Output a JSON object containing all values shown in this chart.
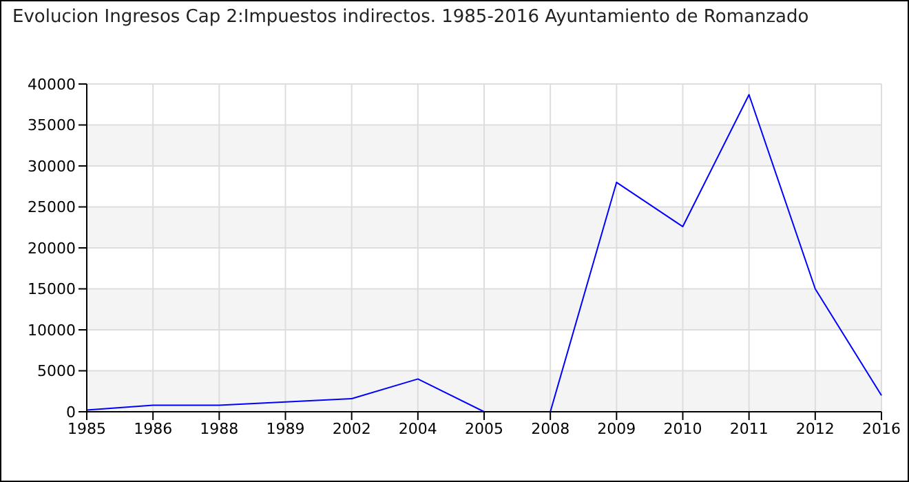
{
  "chart_data": {
    "type": "line",
    "title": "Evolucion Ingresos Cap 2:Impuestos indirectos. 1985-2016 Ayuntamiento de Romanzado",
    "categories": [
      "1985",
      "1986",
      "1988",
      "1989",
      "2002",
      "2004",
      "2005",
      "2008",
      "2009",
      "2010",
      "2011",
      "2012",
      "2016"
    ],
    "series": [
      {
        "color": "#0000ff",
        "values": [
          200,
          800,
          800,
          1200,
          1600,
          4000,
          0,
          0,
          28000,
          22600,
          38700,
          15000,
          2000
        ]
      }
    ],
    "ylim": [
      0,
      40000
    ],
    "yticks": [
      0,
      5000,
      10000,
      15000,
      20000,
      25000,
      30000,
      35000,
      40000
    ],
    "grid": true,
    "legend": false,
    "marker": "none",
    "line_style": "solid"
  }
}
